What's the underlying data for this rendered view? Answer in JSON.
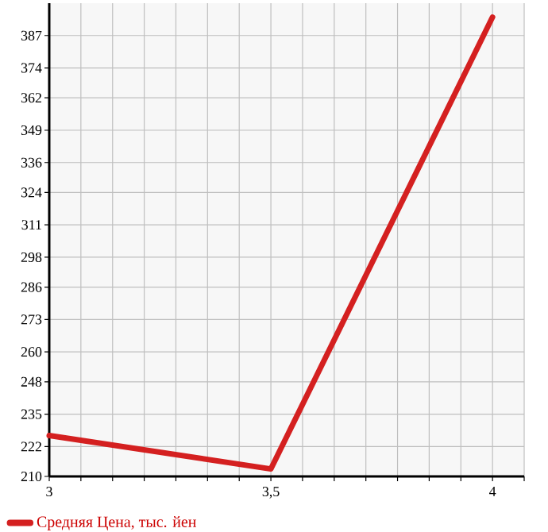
{
  "chart_data": {
    "type": "line",
    "x": [
      3,
      3.5,
      4
    ],
    "series": [
      {
        "name": "Средняя Цена, тыс. йен",
        "color": "#d42020",
        "values": [
          226.4,
          213,
          394.4
        ]
      }
    ],
    "xlim": [
      3,
      4.0714
    ],
    "xticks": [
      3,
      {
        "value": 3.0714,
        "label": null
      },
      {
        "value": 3.1429,
        "label": null
      },
      {
        "value": 3.2143,
        "label": null
      },
      {
        "value": 3.2857,
        "label": null
      },
      {
        "value": 3.3571,
        "label": null
      },
      {
        "value": 3.4286,
        "label": null
      },
      {
        "value": 3.5,
        "label": "3,5"
      },
      {
        "value": 3.5714,
        "label": null
      },
      {
        "value": 3.6429,
        "label": null
      },
      {
        "value": 3.7143,
        "label": null
      },
      {
        "value": 3.7857,
        "label": null
      },
      {
        "value": 3.8571,
        "label": null
      },
      {
        "value": 3.9286,
        "label": null
      },
      4,
      {
        "value": 4.0714,
        "label": null
      }
    ],
    "ylim": [
      210,
      400
    ],
    "yticks": [
      210,
      222,
      235,
      248,
      260,
      273,
      286,
      298,
      311,
      324,
      336,
      349,
      362,
      374,
      387
    ],
    "grid": true,
    "legend": "bottom left",
    "marker": "none",
    "line_style": "solid"
  }
}
